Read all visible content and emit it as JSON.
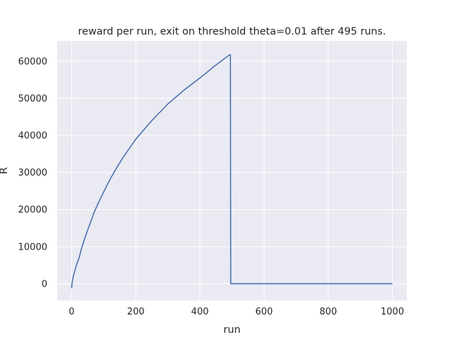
{
  "chart_data": {
    "type": "line",
    "title": "reward per run, exit on threshold theta=0.01 after 495 runs.",
    "xlabel": "run",
    "ylabel": "R",
    "xlim": [
      -45,
      1045
    ],
    "ylim": [
      -4500,
      65500
    ],
    "x_ticks": [
      0,
      200,
      400,
      600,
      800,
      1000
    ],
    "y_ticks": [
      0,
      10000,
      20000,
      30000,
      40000,
      50000,
      60000
    ],
    "grid": true,
    "background": "#EAEAF2",
    "grid_color": "#FFFFFF",
    "line_color": "#4C72B0",
    "series": [
      {
        "x": [
          0,
          1,
          5,
          10,
          15,
          20,
          25,
          30,
          40,
          50,
          60,
          70,
          80,
          90,
          100,
          120,
          140,
          160,
          180,
          200,
          250,
          300,
          350,
          400,
          450,
          490,
          495,
          496,
          500,
          600,
          700,
          800,
          900,
          1000
        ],
        "y": [
          -1200,
          0,
          2000,
          3500,
          5000,
          6200,
          7500,
          9300,
          12000,
          14500,
          16800,
          19200,
          21200,
          23000,
          24800,
          28200,
          31200,
          34000,
          36500,
          39000,
          44000,
          48500,
          52200,
          55500,
          59000,
          61600,
          61800,
          0,
          0,
          0,
          0,
          0,
          0,
          0
        ]
      }
    ]
  }
}
